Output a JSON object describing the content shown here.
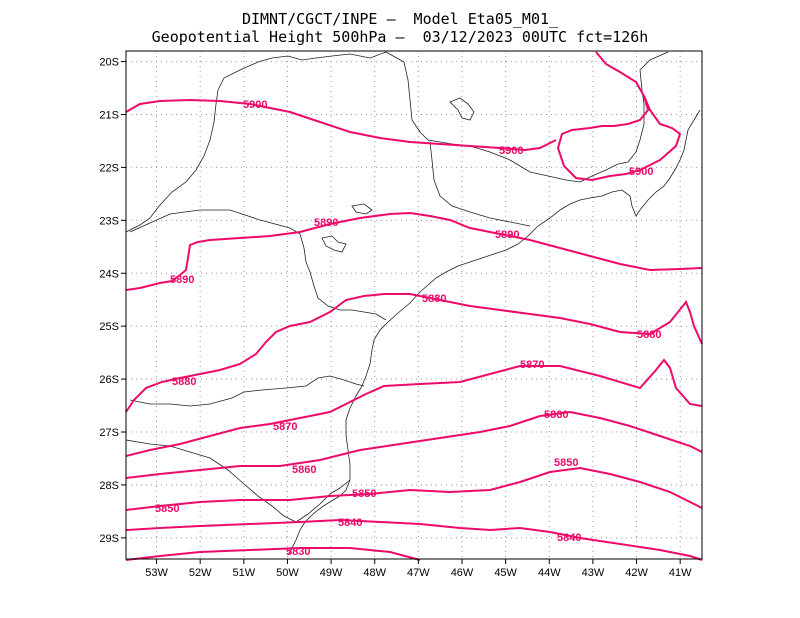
{
  "title": {
    "line1": "DIMNT/CGCT/INPE –  Model Eta05_M01_",
    "line2": "Geopotential Height 500hPa –  03/12/2023 00UTC fct=126h"
  },
  "colors": {
    "contour": "#ee0a6a",
    "label": "#ee0a6a",
    "coast": "#222222",
    "grid": "#999999",
    "frame": "#000000"
  },
  "map": {
    "lon_range": [
      -53.7,
      -40.5
    ],
    "lat_range": [
      -29.4,
      -19.8
    ],
    "gridlines": "dotted, every 1 degree"
  },
  "axes": {
    "x_ticks": [
      "53W",
      "52W",
      "51W",
      "50W",
      "49W",
      "48W",
      "47W",
      "46W",
      "45W",
      "44W",
      "43W",
      "42W",
      "41W"
    ],
    "y_ticks": [
      "20S",
      "21S",
      "22S",
      "23S",
      "24S",
      "25S",
      "26S",
      "27S",
      "28S",
      "29S"
    ]
  },
  "contours": [
    {
      "value": 5900,
      "label": "5900"
    },
    {
      "value": 5890,
      "label": "5890"
    },
    {
      "value": 5880,
      "label": "5880"
    },
    {
      "value": 5870,
      "label": "5870"
    },
    {
      "value": 5860,
      "label": "5860"
    },
    {
      "value": 5850,
      "label": "5850"
    },
    {
      "value": 5840,
      "label": "5840"
    },
    {
      "value": 5830,
      "label": "5830"
    }
  ]
}
